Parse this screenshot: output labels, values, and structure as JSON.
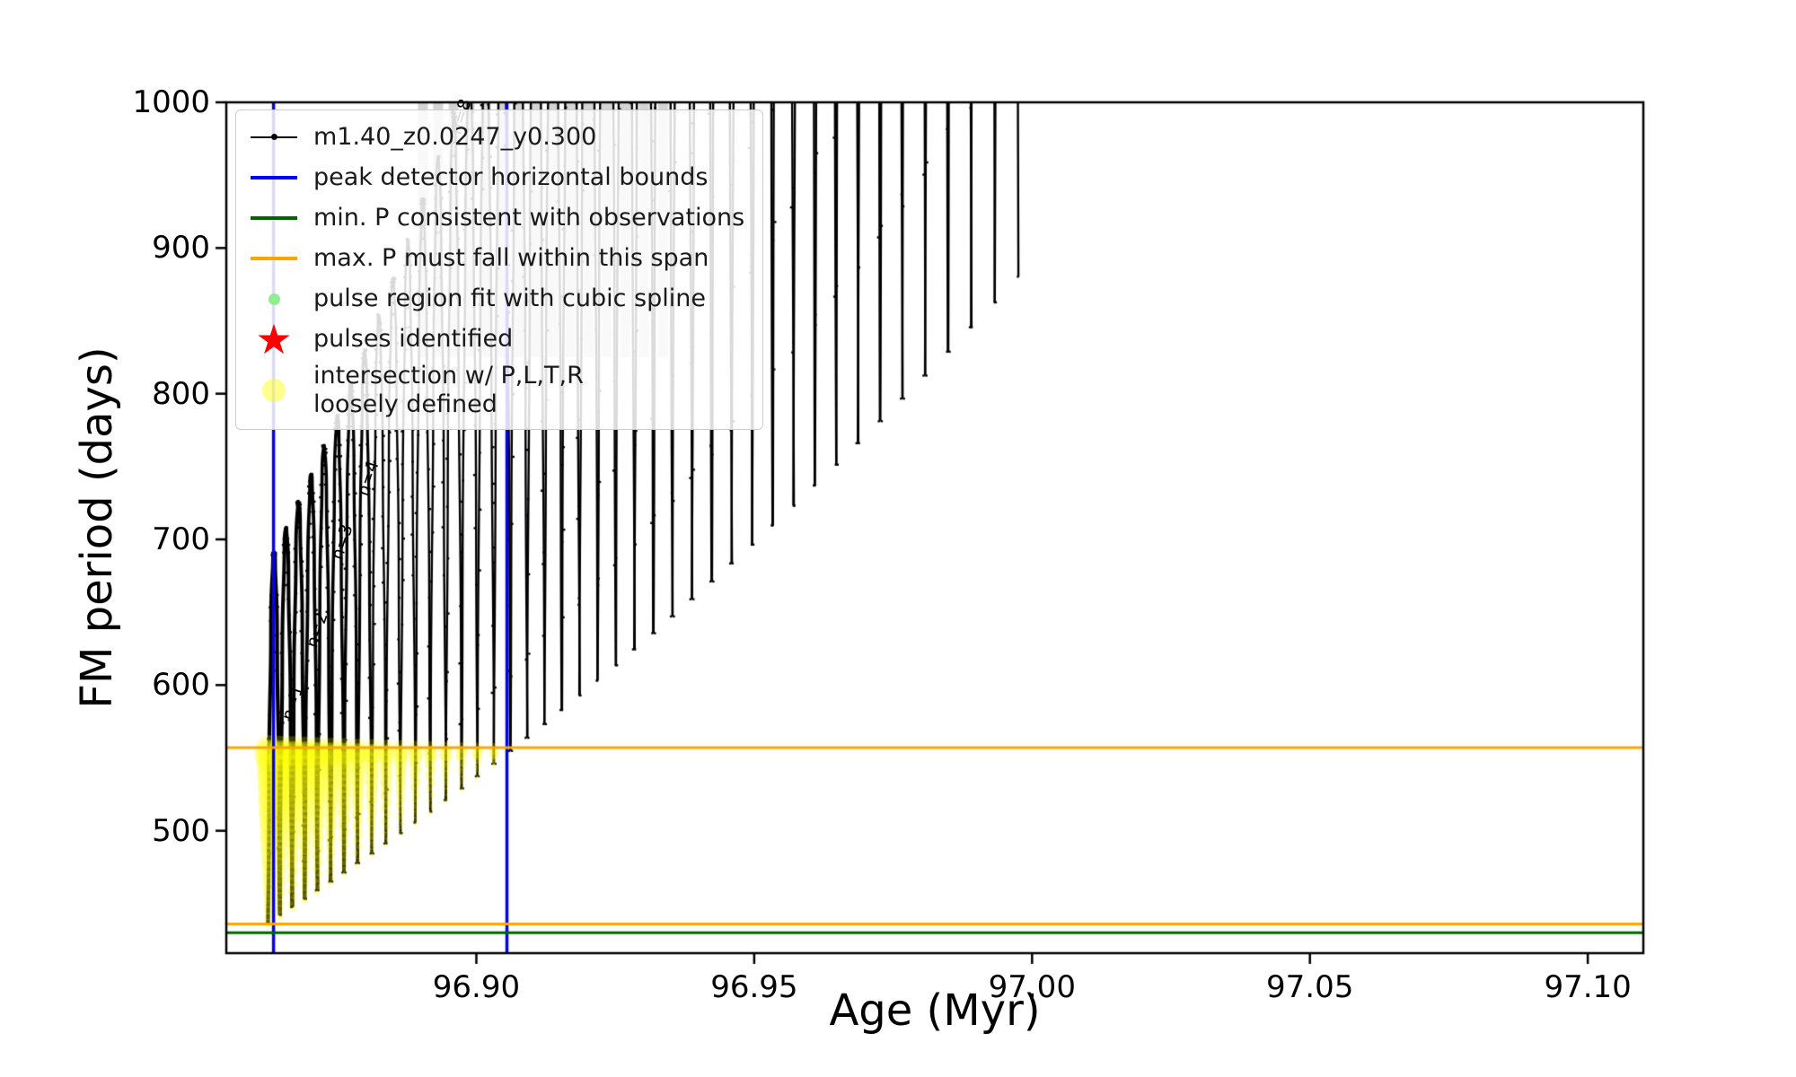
{
  "figure": {
    "background": "#ffffff"
  },
  "chart_data": {
    "type": "line",
    "title": "",
    "xlabel": "Age (Myr)",
    "ylabel": "FM period (days)",
    "xlim": [
      96.855,
      97.11
    ],
    "ylim": [
      416,
      1000
    ],
    "grid": false,
    "legend_position": "upper left",
    "xticks": [
      96.9,
      96.95,
      97.0,
      97.05,
      97.1
    ],
    "xtick_labels": [
      "96.90",
      "96.95",
      "97.00",
      "97.05",
      "97.10"
    ],
    "yticks": [
      500,
      600,
      700,
      800,
      900,
      1000
    ],
    "ytick_labels": [
      "500",
      "600",
      "700",
      "800",
      "900",
      "1000"
    ],
    "series": [
      {
        "name": "m1.40_z0.0247_y0.300",
        "color": "#000000",
        "description": "FM period vs age; dense comb of thermal-pulse spikes, envelope rising until clipped at 1000 days",
        "pulse_bottom_age": [
          96.8625,
          96.86465,
          96.86685,
          96.86911,
          96.87141,
          96.87377,
          96.87618,
          96.87864,
          96.88116,
          96.88372,
          96.88634,
          96.88901,
          96.89173,
          96.89451,
          96.89733,
          96.90021,
          96.90314,
          96.90612,
          96.90916,
          96.91224,
          96.91538,
          96.91857,
          96.92181,
          96.92511,
          96.92845,
          96.93185,
          96.9353,
          96.9388,
          96.94236,
          96.94596,
          96.94962,
          96.95333,
          96.95709,
          96.96091,
          96.96477,
          96.96869,
          96.97266,
          96.97668,
          96.98076,
          96.98488,
          96.98906,
          96.99329,
          96.99757
        ],
        "pulse_bottom_period": [
          437,
          442.2,
          447.7,
          453.3,
          459.1,
          465.1,
          471.3,
          477.8,
          484.4,
          491.3,
          498.4,
          505.7,
          513.2,
          521.1,
          529.1,
          537.4,
          546.0,
          554.8,
          563.8,
          573.2,
          582.9,
          592.9,
          603.1,
          613.6,
          624.5,
          635.6,
          647.1,
          658.9,
          671.1,
          683.5,
          696.4,
          709.6,
          723.1,
          737.0,
          751.3,
          766.0,
          781.1,
          796.6,
          812.4,
          828.8,
          845.6,
          862.7,
          880.3
        ],
        "pulse_top_period": [
          691.2,
          708.1,
          726.0,
          744.7,
          764.5,
          785.3,
          807.2,
          830.2,
          854.3,
          879.6,
          906.2,
          934.0,
          963.1,
          993.7,
          1025.5,
          1059.0,
          1093.8,
          1130.2,
          1168.2,
          1207.8,
          1249.1,
          1292.2,
          1337.1,
          1383.9,
          1432.5,
          1483.2,
          1535.8,
          1590.6,
          1647.4,
          1706.5,
          1767.9,
          1831.5,
          1897.5,
          1965.9,
          2036.7,
          2110.2,
          2186.4,
          2265.2,
          2346.7,
          2431.0,
          2518.3,
          2608.6
        ]
      }
    ],
    "vlines": {
      "name": "peak detector horizontal bounds",
      "color": "#0000ff",
      "ages": [
        96.8635,
        96.9055
      ]
    },
    "hlines": [
      {
        "name": "min. P consistent with observations",
        "color": "#006400",
        "periods": [
          430
        ]
      },
      {
        "name": "max. P must fall within this span",
        "color": "#ffa500",
        "periods": [
          436,
          557
        ]
      }
    ],
    "intersection_markers": {
      "name": "intersection w/ P,L,T,R loosely defined",
      "color": "#ffff00",
      "alpha": 0.22,
      "period_top": 557,
      "age_limit": 96.906
    },
    "gray_bands": {
      "color": "rgba(170,170,170,0.5)",
      "age_range": [
        96.888,
        96.934
      ],
      "period_range": [
        825,
        1000
      ]
    },
    "annotations": [
      {
        "text": "n=1",
        "age": 96.8669,
        "period": 588,
        "rotation": -72
      },
      {
        "text": "n=2",
        "age": 96.8714,
        "period": 638,
        "rotation": -72
      },
      {
        "text": "n=3",
        "age": 96.8759,
        "period": 698,
        "rotation": -72
      },
      {
        "text": "n=4",
        "age": 96.8806,
        "period": 742,
        "rotation": -72
      },
      {
        "text": "n=8",
        "age": 96.8972,
        "period": 990,
        "rotation": -72
      }
    ],
    "legend": [
      {
        "marker": "line-dot",
        "color": "#000000",
        "label": "m1.40_z0.0247_y0.300"
      },
      {
        "marker": "line",
        "color": "#0000ff",
        "label": "peak detector horizontal bounds"
      },
      {
        "marker": "line",
        "color": "#006400",
        "label": "min. P consistent with observations"
      },
      {
        "marker": "line",
        "color": "#ffa500",
        "label": "max. P must fall within this span"
      },
      {
        "marker": "dot",
        "color": "#90ee90",
        "label": "pulse region fit with cubic spline"
      },
      {
        "marker": "star",
        "color": "#ff0000",
        "label": "pulses identified"
      },
      {
        "marker": "circle",
        "color": "#ffff00",
        "label": "intersection w/ P,L,T,R\nloosely defined"
      }
    ]
  }
}
